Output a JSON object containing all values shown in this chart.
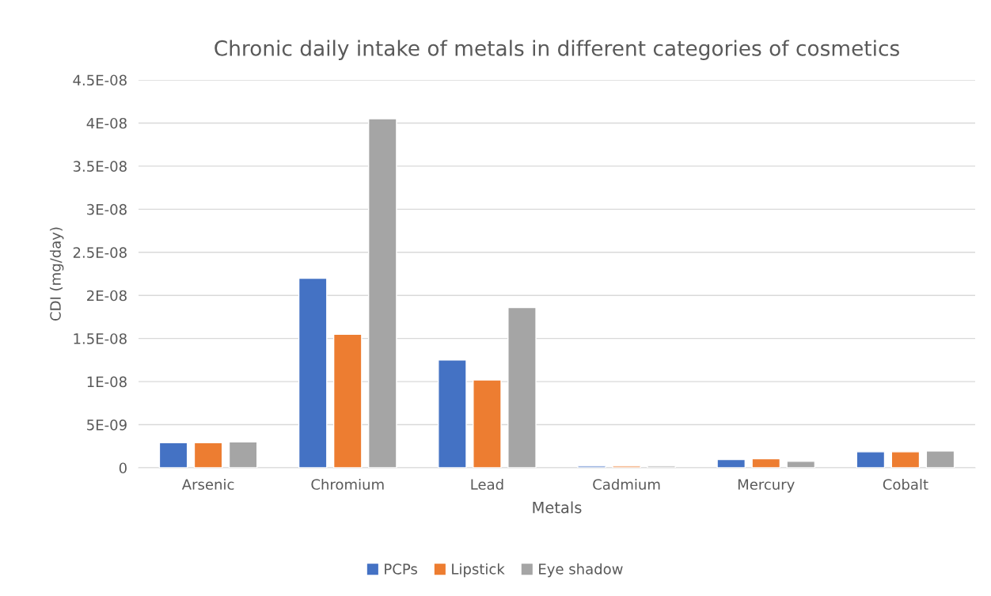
{
  "chart_data": {
    "type": "bar",
    "title": "Chronic daily intake of metals in different categories of cosmetics",
    "xlabel": "Metals",
    "ylabel": "CDI (mg/day)",
    "categories": [
      "Arsenic",
      "Chromium",
      "Lead",
      "Cadmium",
      "Mercury",
      "Cobalt"
    ],
    "series": [
      {
        "name": "PCPs",
        "color": "#4472c4",
        "values": [
          2.9e-09,
          2.2e-08,
          1.25e-08,
          2e-10,
          9.6e-10,
          1.85e-09
        ]
      },
      {
        "name": "Lipstick",
        "color": "#ed7d31",
        "values": [
          2.9e-09,
          1.55e-08,
          1.02e-08,
          2e-10,
          1.05e-09,
          1.85e-09
        ]
      },
      {
        "name": "Eye shadow",
        "color": "#a5a5a5",
        "values": [
          3e-09,
          4.05e-08,
          1.86e-08,
          2e-10,
          7.5e-10,
          1.95e-09
        ]
      }
    ],
    "ylim": [
      0,
      4.5e-08
    ],
    "yticks": [
      0,
      {
        "value": 5e-09,
        "label": "5E-09"
      },
      {
        "value": 1e-08,
        "label": "1E-08"
      },
      {
        "value": 1.5e-08,
        "label": "1.5E-08"
      },
      {
        "value": 2e-08,
        "label": "2E-08"
      },
      {
        "value": 2.5e-08,
        "label": "2.5E-08"
      },
      {
        "value": 3e-08,
        "label": "3E-08"
      },
      {
        "value": 3.5e-08,
        "label": "3.5E-08"
      },
      {
        "value": 4e-08,
        "label": "4E-08"
      },
      {
        "value": 4.5e-08,
        "label": "4.5E-08"
      }
    ],
    "grid": "y",
    "legend": "bottom"
  }
}
